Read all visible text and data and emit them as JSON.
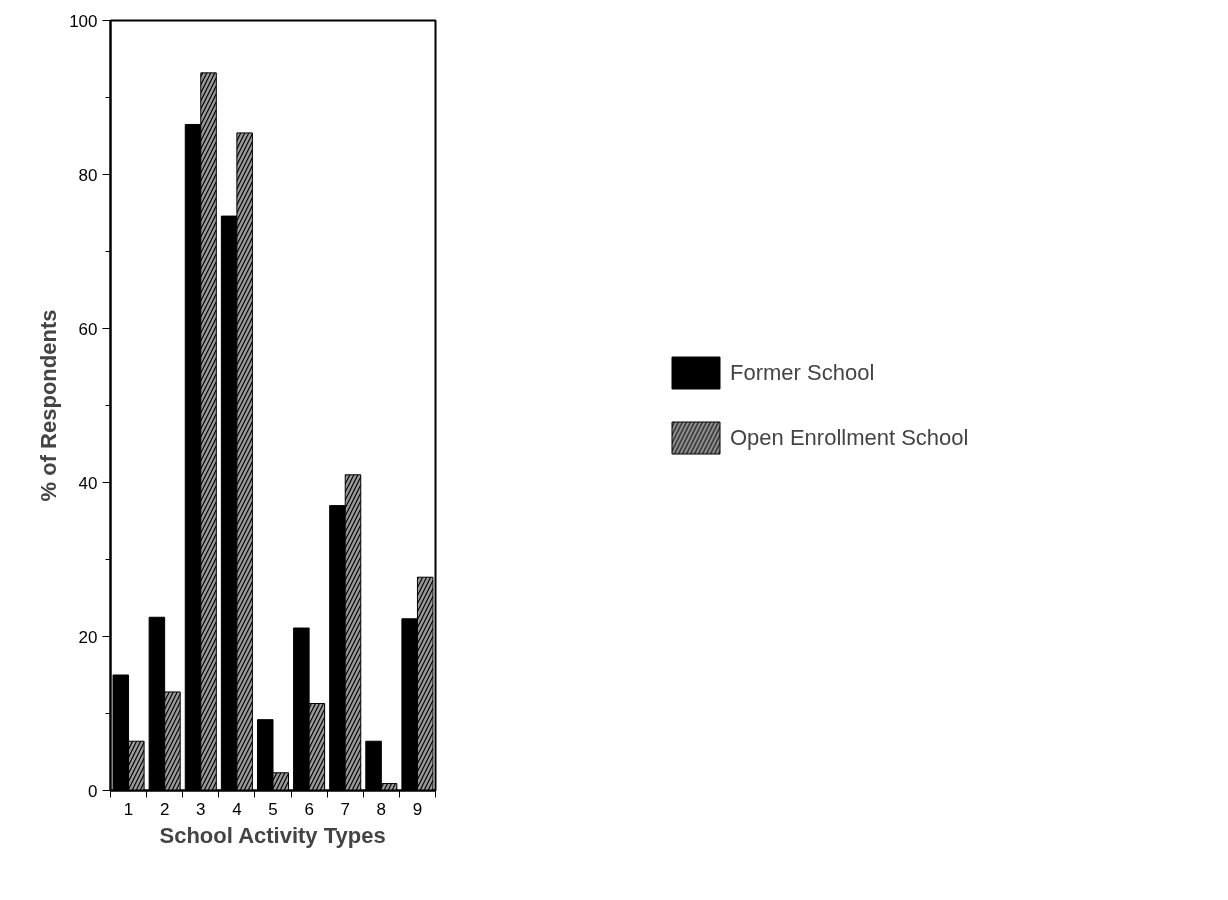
{
  "chart_data": {
    "type": "bar",
    "xlabel": "School Activity Types",
    "ylabel": "% of Respondents",
    "categories": [
      "1",
      "2",
      "3",
      "4",
      "5",
      "6",
      "7",
      "8",
      "9"
    ],
    "series": [
      {
        "name": "Former School",
        "color": "#000000",
        "values": [
          15,
          22.5,
          86.5,
          74.6,
          9.2,
          21.1,
          37,
          6.4,
          22.3
        ]
      },
      {
        "name": "Open Enrollment School",
        "color": "#9a9a9a",
        "values": [
          6.4,
          12.8,
          93.2,
          85.4,
          2.3,
          11.3,
          41,
          0.9,
          27.7
        ]
      }
    ],
    "ylim": [
      0,
      100
    ],
    "yticks": [
      0,
      {
        "value": 10,
        "label": null
      },
      20,
      {
        "value": 30,
        "label": null
      },
      40,
      {
        "value": 50,
        "label": null
      },
      60,
      {
        "value": 70,
        "label": null
      },
      80,
      {
        "value": 90,
        "label": null
      },
      100
    ],
    "grid": false,
    "legend": "right"
  }
}
